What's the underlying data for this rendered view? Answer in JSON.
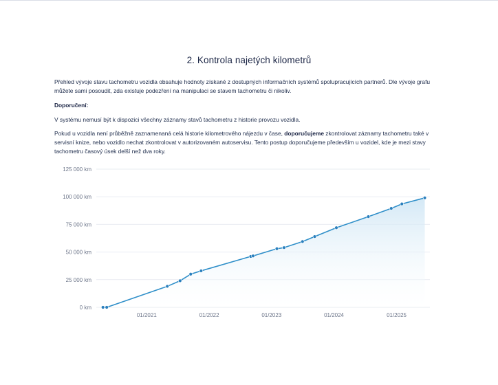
{
  "section": {
    "title": "2. Kontrola najetých kilometrů"
  },
  "paragraphs": {
    "intro": "Přehled vývoje stavu tachometru vozidla obsahuje hodnoty získané z dostupných informačních systémů spolupracujících partnerů. Dle vývoje grafu můžete sami posoudit, zda existuje podezření na manipulaci se stavem tachometru či nikoliv.",
    "recommend_label": "Doporučení:",
    "note": "V systému nemusí být k dispozici všechny záznamy stavů tachometru z historie provozu vozidla.",
    "advice_part1": "Pokud u vozidla není průběžně zaznamenaná celá historie kilometrového nájezdu v čase, ",
    "advice_bold": "doporučujeme",
    "advice_part2": " zkontrolovat záznamy tachometru také v servisní knize, nebo vozidlo nechat zkontrolovat v autorizovaném autoservisu. Tento postup doporučujeme především u vozidel, kde je mezi stavy tachometru časový úsek delší než dva roky."
  },
  "colors": {
    "line": "#2f8fc9",
    "point": "#2a7fbd",
    "area_top": "#cfe6f5",
    "area_bottom": "#ffffff",
    "grid": "#e9ecf2",
    "axis_text": "#6b7488"
  },
  "chart_data": {
    "type": "area",
    "title": "",
    "xlabel": "",
    "ylabel": "",
    "x_ticks": [
      "01/2021",
      "01/2022",
      "01/2023",
      "01/2024",
      "01/2025"
    ],
    "y_ticks": [
      "0 km",
      "25 000 km",
      "50 000 km",
      "75 000 km",
      "100 000 km",
      "125 000 km"
    ],
    "y_tick_values": [
      0,
      25000,
      50000,
      75000,
      100000,
      125000
    ],
    "ylim": [
      0,
      125000
    ],
    "xlim": [
      "2020-03-12",
      "2025-07-15"
    ],
    "grid": true,
    "legend": "none",
    "series": [
      {
        "x": [
          "2020-04-20",
          "2020-05-12",
          "2021-05-01",
          "2021-07-15",
          "2021-09-15",
          "2021-11-15",
          "2022-09-01",
          "2022-09-15",
          "2023-02-01",
          "2023-03-15",
          "2023-07-01",
          "2023-09-10",
          "2024-01-15",
          "2024-07-20",
          "2024-12-01",
          "2025-02-01",
          "2025-06-15"
        ],
        "y": [
          0,
          0,
          19000,
          24000,
          30000,
          33000,
          46000,
          46500,
          53000,
          54000,
          59500,
          64000,
          72000,
          82000,
          89500,
          93500,
          99000
        ]
      }
    ]
  }
}
